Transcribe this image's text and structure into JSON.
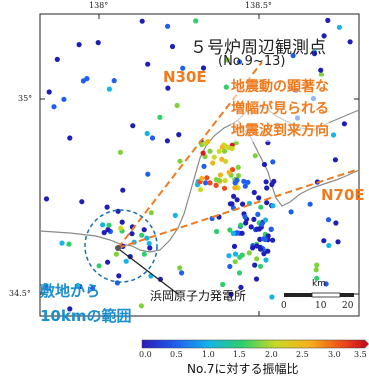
{
  "map": {
    "title_line1": "５号炉周辺観測点",
    "title_line2": "(No.9~13)",
    "lon_ticks": [
      "138°",
      "138.5°"
    ],
    "lat_ticks": [
      "35°",
      "34.5°"
    ],
    "direction_labels": {
      "n30e": "N30E",
      "n70e": "N70E"
    },
    "annotation_lines": [
      "地震動の顕著な",
      "増幅が見られる",
      "地震波到来方向"
    ],
    "site_range_lines": [
      "敷地から",
      "10kmの範囲"
    ],
    "plant_label": "浜岡原子力発電所",
    "scale": {
      "unit": "km",
      "ticks": [
        "0",
        "10",
        "20"
      ]
    },
    "colorbar": {
      "ticks": [
        "0.0",
        "0.5",
        "1.0",
        "1.5",
        "2.0",
        "2.5",
        "3.0",
        "3.5"
      ],
      "label": "No.7に対する振幅比",
      "min": 0.0,
      "max": 3.5
    },
    "colors": {
      "accent_orange": "#f07b1e",
      "accent_blue": "#1a8fd0",
      "low": "#1f1fb8",
      "high": "#d62020"
    }
  }
}
